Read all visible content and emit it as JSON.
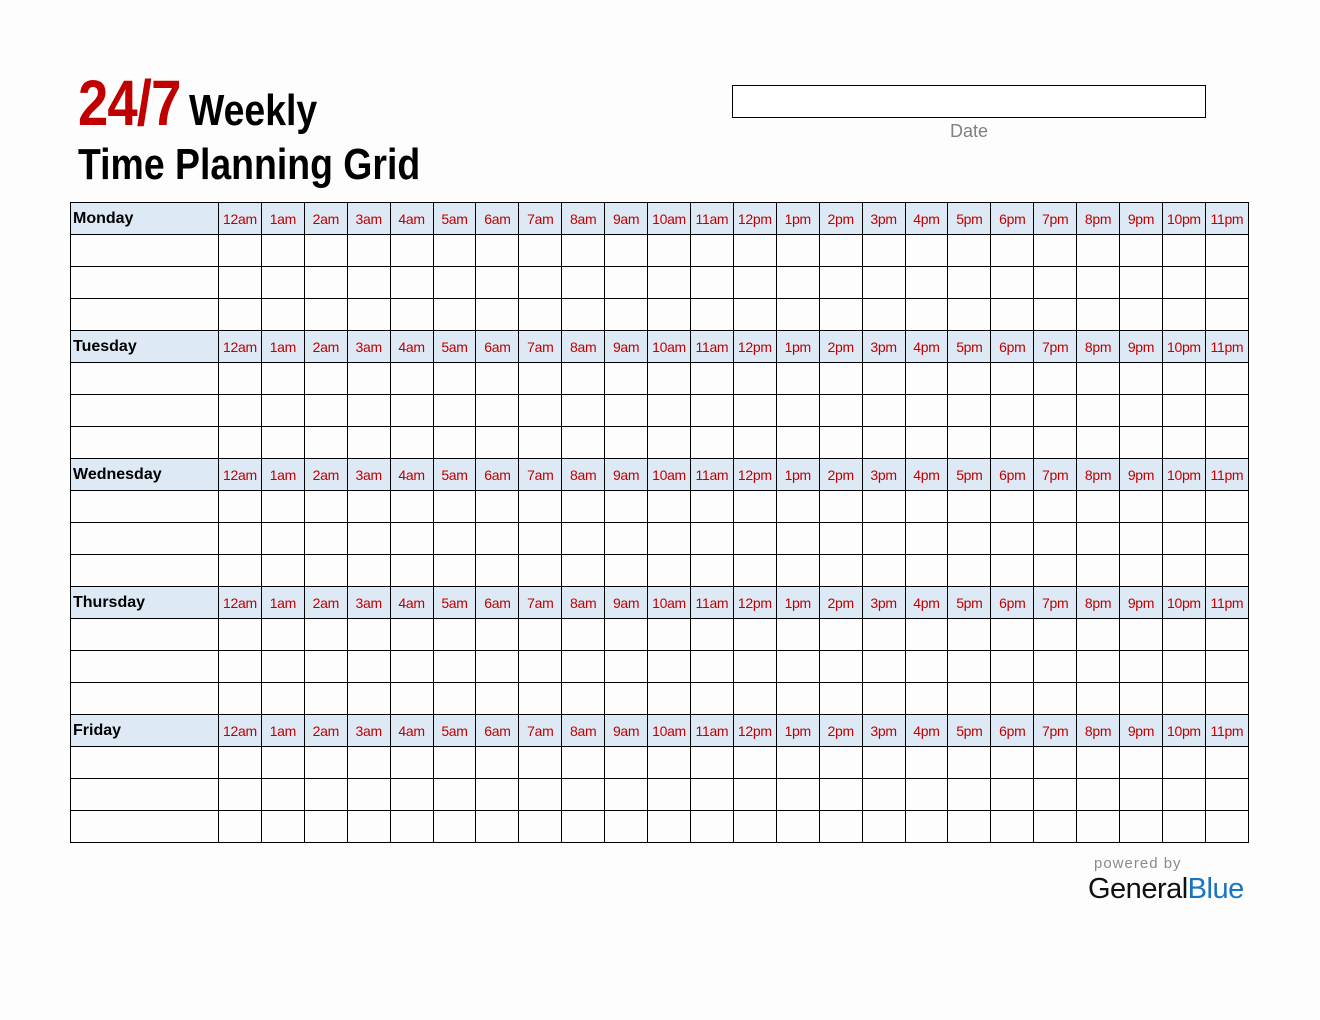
{
  "title": {
    "number": "24/7",
    "line1": "Weekly",
    "line2": "Time Planning Grid"
  },
  "date": {
    "label": "Date",
    "value": ""
  },
  "grid": {
    "days": [
      "Monday",
      "Tuesday",
      "Wednesday",
      "Thursday",
      "Friday"
    ],
    "hours": [
      "12am",
      "1am",
      "2am",
      "3am",
      "4am",
      "5am",
      "6am",
      "7am",
      "8am",
      "9am",
      "10am",
      "11am",
      "12pm",
      "1pm",
      "2pm",
      "3pm",
      "4pm",
      "5pm",
      "6pm",
      "7pm",
      "8pm",
      "9pm",
      "10pm",
      "11pm"
    ],
    "blank_rows_per_day": 3
  },
  "footer": {
    "powered": "powered by",
    "brand_general": "General",
    "brand_blue": "Blue"
  },
  "colors": {
    "accent_red": "#c00000",
    "header_fill": "#dde9f5",
    "brand_blue": "#1a75c0"
  }
}
